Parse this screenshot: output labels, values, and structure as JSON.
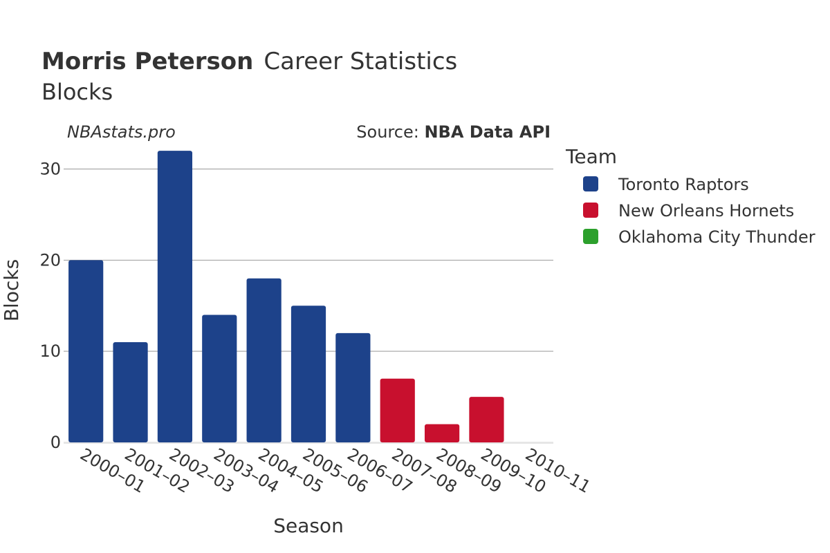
{
  "title": {
    "bold": "Morris Peterson",
    "rest": "Career Statistics",
    "subtitle": "Blocks"
  },
  "watermark": "NBAstats.pro",
  "source": {
    "prefix": "Source: ",
    "bold": "NBA Data API"
  },
  "legend": {
    "title": "Team",
    "items": [
      {
        "label": "Toronto Raptors",
        "color": "#1d428a"
      },
      {
        "label": "New Orleans Hornets",
        "color": "#c8102e"
      },
      {
        "label": "Oklahoma City Thunder",
        "color": "#2ca02c"
      }
    ]
  },
  "chart_data": {
    "type": "bar",
    "xlabel": "Season",
    "ylabel": "Blocks",
    "ylim": [
      0,
      33
    ],
    "yticks": [
      0,
      10,
      20,
      30
    ],
    "grid": true,
    "legend_position": "right",
    "categories": [
      "2000–01",
      "2001–02",
      "2002–03",
      "2003–04",
      "2004–05",
      "2005–06",
      "2006–07",
      "2007–08",
      "2008–09",
      "2009–10",
      "2010–11"
    ],
    "series": [
      {
        "name": "Toronto Raptors",
        "color": "#1d428a",
        "values": [
          20,
          11,
          32,
          14,
          18,
          15,
          12,
          null,
          null,
          null,
          null
        ]
      },
      {
        "name": "New Orleans Hornets",
        "color": "#c8102e",
        "values": [
          null,
          null,
          null,
          null,
          null,
          null,
          null,
          7,
          2,
          5,
          null
        ]
      },
      {
        "name": "Oklahoma City Thunder",
        "color": "#2ca02c",
        "values": [
          null,
          null,
          null,
          null,
          null,
          null,
          null,
          null,
          null,
          null,
          0
        ]
      }
    ]
  }
}
